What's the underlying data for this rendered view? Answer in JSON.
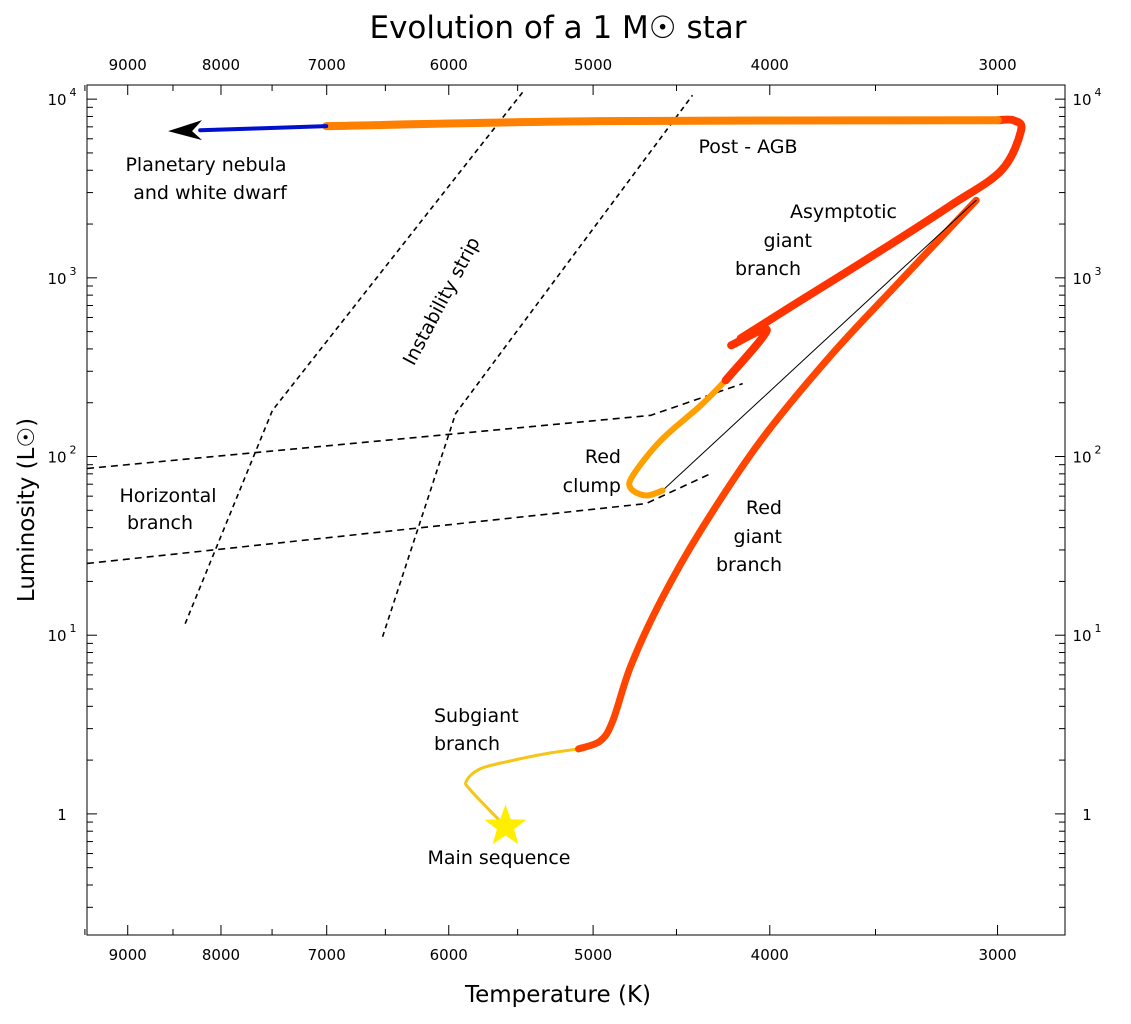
{
  "chart_data": {
    "type": "line",
    "title": "Evolution of a 1 M☉ star",
    "xlabel": "Temperature (K)",
    "ylabel": "Luminosity (L☉)",
    "x_scale": "log",
    "x_reversed": true,
    "y_scale": "log",
    "xlim": [
      9475,
      2755
    ],
    "ylim": [
      0.21,
      12000
    ],
    "grid": false,
    "x_ticks": [
      "9000",
      "8000",
      "7000",
      "6000",
      "5000",
      "4000",
      "3000"
    ],
    "x_tick_values": [
      9000,
      8000,
      7000,
      6000,
      5000,
      4000,
      3000
    ],
    "y_ticks": [
      {
        "base": "10",
        "exp": "4",
        "value": 10000
      },
      {
        "base": "10",
        "exp": "3",
        "value": 1000
      },
      {
        "base": "10",
        "exp": "2",
        "value": 100
      },
      {
        "base": "10",
        "exp": "1",
        "value": 10
      },
      {
        "base": "1",
        "exp": "",
        "value": 1
      }
    ],
    "series": [
      {
        "name": "Subgiant branch",
        "color": "#f5c518",
        "points": [
          [
            5585,
            0.85
          ],
          [
            5834,
            1.35
          ],
          [
            5867,
            1.53
          ],
          [
            5765,
            1.79
          ],
          [
            5548,
            1.98
          ],
          [
            5309,
            2.17
          ],
          [
            5093,
            2.31
          ]
        ]
      },
      {
        "name": "Red giant branch",
        "color": "#ff4500",
        "points": [
          [
            5093,
            2.31
          ],
          [
            4955,
            2.56
          ],
          [
            4877,
            3.32
          ],
          [
            4767,
            6.75
          ],
          [
            4590,
            15.6
          ],
          [
            4365,
            38.5
          ],
          [
            4045,
            123
          ],
          [
            3703,
            368
          ],
          [
            3390,
            968
          ],
          [
            3082,
            2718
          ]
        ]
      },
      {
        "color": "#000000",
        "points": [
          [
            3082,
            2718
          ],
          [
            4580,
            64.5
          ]
        ]
      },
      {
        "name": "Red clump",
        "color": "#ffa000",
        "points": [
          [
            4580,
            64.5
          ],
          [
            4677,
            60.5
          ],
          [
            4767,
            66.2
          ],
          [
            4755,
            78.3
          ],
          [
            4590,
            123
          ],
          [
            4365,
            193
          ],
          [
            4229,
            267
          ]
        ]
      },
      {
        "color": "#ff3300",
        "points": [
          [
            4229,
            267
          ],
          [
            4015,
            508
          ],
          [
            4200,
            419
          ]
        ]
      },
      {
        "name": "Asymptotic giant branch",
        "color": "#ff3300",
        "points": [
          [
            4150,
            458
          ],
          [
            3846,
            748
          ],
          [
            3475,
            1426
          ],
          [
            3182,
            2547
          ],
          [
            2985,
            4000
          ],
          [
            2912,
            6700
          ],
          [
            2941,
            7620
          ],
          [
            2999,
            7620
          ]
        ]
      },
      {
        "name": "Post - AGB",
        "color": "#ff8000",
        "points": [
          [
            2999,
            7620
          ],
          [
            4955,
            7530
          ],
          [
            7004,
            7060
          ]
        ]
      },
      {
        "name": "Planetary nebula and white dwarf",
        "color": "#0010cc",
        "points": [
          [
            7004,
            7060
          ],
          [
            8213,
            6700
          ]
        ]
      }
    ],
    "arrow_tip": [
      8553,
      6620
    ],
    "star_marker": {
      "label": "Main sequence",
      "point": [
        5585,
        0.85
      ],
      "color": "#ffee00"
    },
    "instability_strip": [
      [
        [
          8370,
          11.6
        ],
        [
          7497,
          181
        ],
        [
          5465,
          10940
        ]
      ],
      [
        [
          6523,
          9.8
        ],
        [
          5948,
          174
        ],
        [
          4410,
          10520
        ]
      ]
    ],
    "horizontal_branch": [
      [
        [
          9475,
          85.7
        ],
        [
          4649,
          170
        ],
        [
          4139,
          256
        ]
      ],
      [
        [
          9475,
          25.2
        ],
        [
          4677,
          54.5
        ],
        [
          4309,
          80.3
        ]
      ]
    ],
    "annotations": {
      "planetary_1": "Planetary nebula",
      "planetary_2": "and white dwarf",
      "post_agb": "Post - AGB",
      "agb_1": "Asymptotic",
      "agb_2": "giant",
      "agb_3": "branch",
      "instability": "Instability strip",
      "hb_1": "Horizontal",
      "hb_2": "branch",
      "clump_1": "Red",
      "clump_2": "clump",
      "rgb_1": "Red",
      "rgb_2": "giant",
      "rgb_3": "branch",
      "sub_1": "Subgiant",
      "sub_2": "branch",
      "ms": "Main sequence"
    }
  }
}
